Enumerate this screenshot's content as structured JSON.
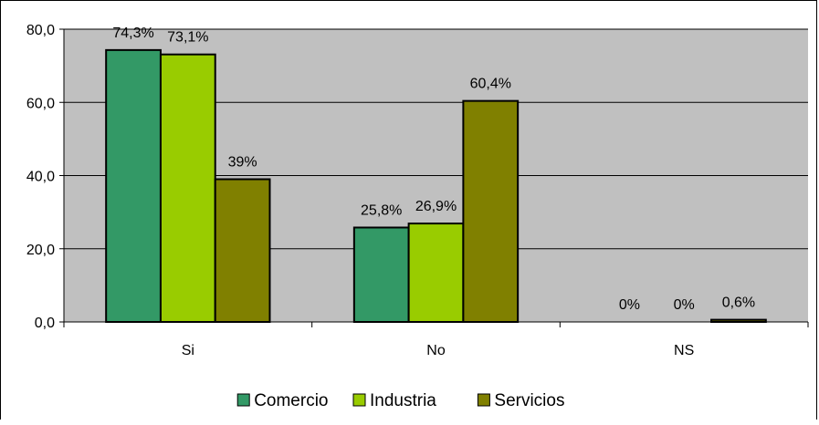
{
  "chart_data": {
    "type": "bar",
    "categories": [
      "Si",
      "No",
      "NS"
    ],
    "series": [
      {
        "name": "Comercio",
        "color": "#339966",
        "values": [
          74.3,
          25.8,
          0
        ],
        "labels": [
          "74,3%",
          "25,8%",
          "0%"
        ]
      },
      {
        "name": "Industria",
        "color": "#99CC00",
        "values": [
          73.1,
          26.9,
          0
        ],
        "labels": [
          "73,1%",
          "26,9%",
          "0%"
        ]
      },
      {
        "name": "Servicios",
        "color": "#808000",
        "values": [
          39,
          60.4,
          0.6
        ],
        "labels": [
          "39%",
          "60,4%",
          "0,6%"
        ]
      }
    ],
    "ylim": [
      0,
      80
    ],
    "yticks": [
      "0,0",
      "20,0",
      "40,0",
      "60,0",
      "80,0"
    ],
    "plot_background": "#C0C0C0",
    "grid": true,
    "legend_position": "bottom"
  }
}
